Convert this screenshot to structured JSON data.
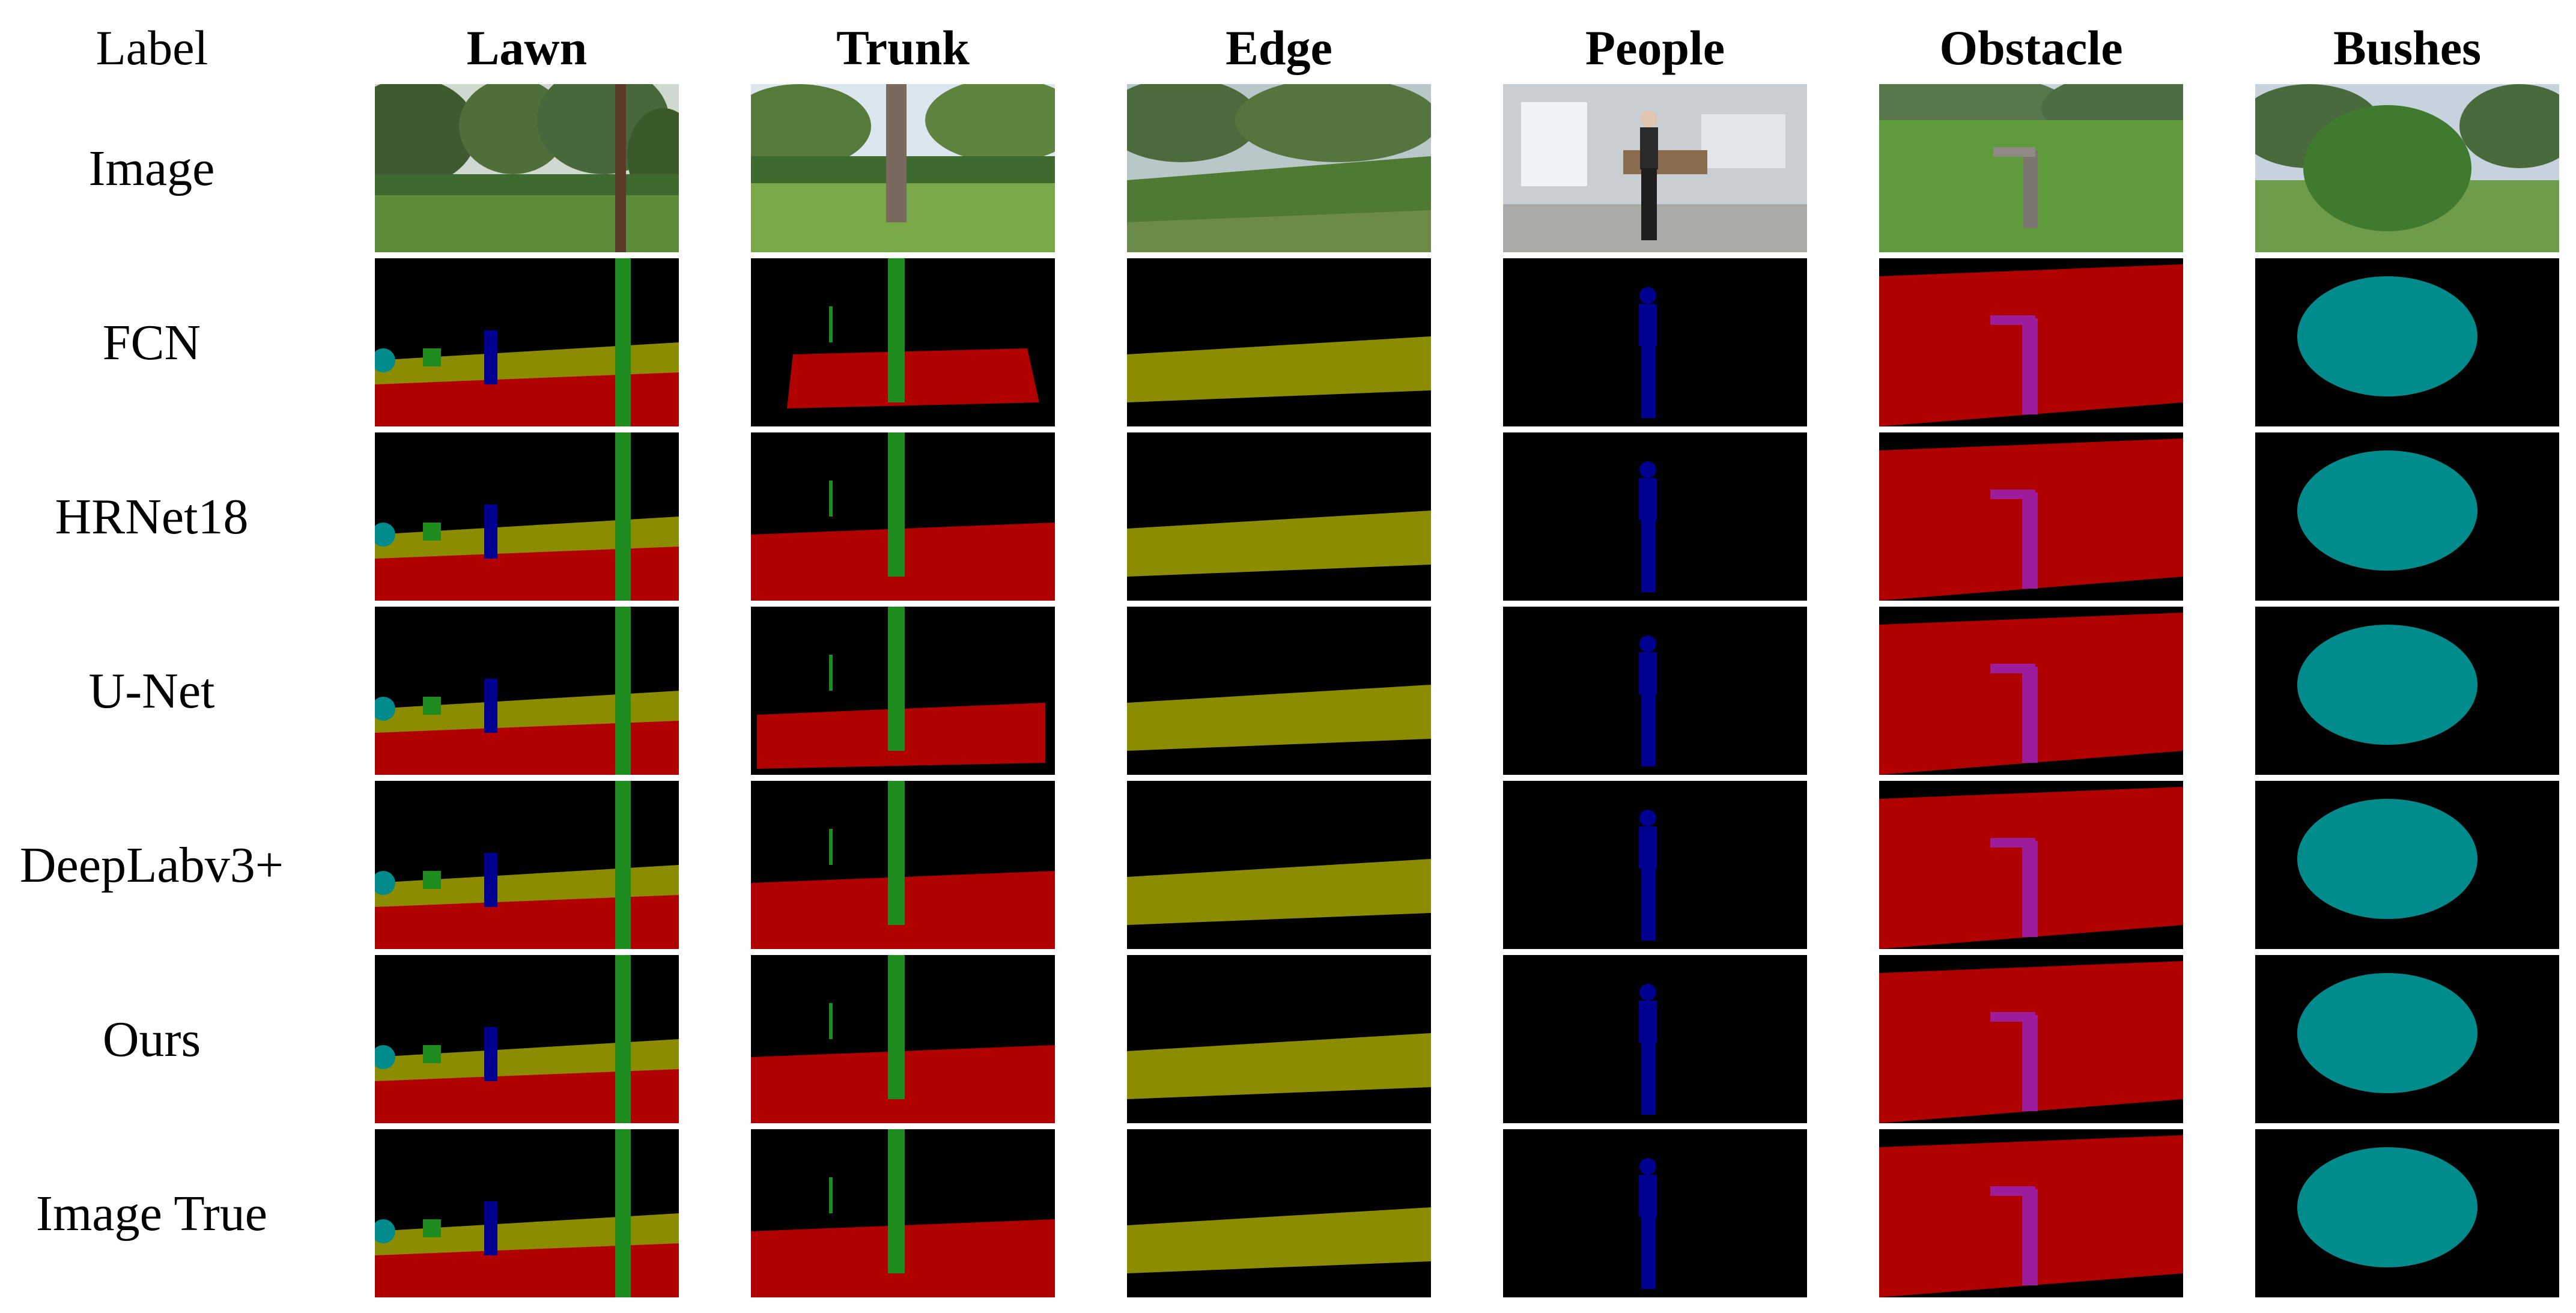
{
  "header": {
    "corner": "Label",
    "columns": [
      "Lawn",
      "Trunk",
      "Edge",
      "People",
      "Obstacle",
      "Bushes"
    ]
  },
  "rows": [
    "Image",
    "FCN",
    "HRNet18",
    "U-Net",
    "DeepLabv3+",
    "Ours",
    "Image True"
  ],
  "class_colors": {
    "background": "#000000",
    "lawn": "#b00000",
    "trunk": "#1f8c1f",
    "edge": "#8c8c00",
    "people": "#000090",
    "obstacle": "#9c1c9c",
    "bushes": "#008c8c"
  }
}
